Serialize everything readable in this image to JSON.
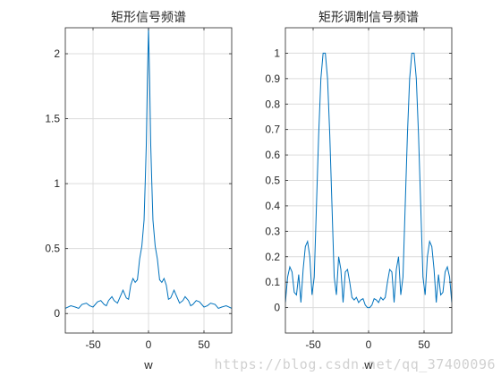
{
  "watermark": "https://blog.csdn.net/qq_37400096",
  "colors": {
    "line": "#0072bd",
    "grid": "#dcdcdc",
    "axis": "#262626",
    "background": "#ffffff"
  },
  "chart_data": [
    {
      "type": "line",
      "title": "矩形信号频谱",
      "xlabel": "w",
      "ylabel": "",
      "xlim": [
        -75,
        75
      ],
      "ylim": [
        -0.15,
        2.2
      ],
      "xticks": [
        -50,
        0,
        50
      ],
      "yticks": [
        0,
        0.5,
        1,
        1.5,
        2
      ],
      "ytick_labels": [
        "0",
        "0.5",
        "1",
        "1.5",
        "2"
      ],
      "grid": true,
      "series": [
        {
          "x": [
            -75,
            -70,
            -66,
            -63,
            -60,
            -56,
            -53,
            -50,
            -46,
            -43,
            -40,
            -38,
            -36,
            -33,
            -31,
            -28,
            -25,
            -23,
            -20,
            -18,
            -16,
            -14,
            -12,
            -10,
            -8,
            -6,
            -4,
            -3,
            -2,
            -1,
            0,
            1,
            2,
            3,
            4,
            6,
            8,
            10,
            12,
            14,
            16,
            18,
            20,
            23,
            25,
            28,
            31,
            33,
            36,
            38,
            40,
            43,
            46,
            50,
            53,
            56,
            60,
            63,
            66,
            70,
            75
          ],
          "y": [
            0.04,
            0.06,
            0.05,
            0.04,
            0.07,
            0.08,
            0.06,
            0.05,
            0.09,
            0.1,
            0.07,
            0.06,
            0.1,
            0.13,
            0.1,
            0.08,
            0.14,
            0.18,
            0.12,
            0.11,
            0.22,
            0.27,
            0.24,
            0.26,
            0.42,
            0.52,
            0.72,
            1.0,
            1.3,
            1.8,
            2.2,
            1.8,
            1.3,
            1.0,
            0.72,
            0.52,
            0.42,
            0.26,
            0.24,
            0.27,
            0.22,
            0.11,
            0.12,
            0.18,
            0.14,
            0.08,
            0.1,
            0.13,
            0.1,
            0.06,
            0.07,
            0.1,
            0.09,
            0.05,
            0.06,
            0.08,
            0.07,
            0.04,
            0.05,
            0.06,
            0.04
          ]
        }
      ]
    },
    {
      "type": "line",
      "title": "矩形调制信号频谱",
      "xlabel": "w",
      "ylabel": "",
      "xlim": [
        -75,
        75
      ],
      "ylim": [
        -0.1,
        1.1
      ],
      "xticks": [
        -50,
        0,
        50
      ],
      "yticks": [
        0,
        0.1,
        0.2,
        0.3,
        0.4,
        0.5,
        0.6,
        0.7,
        0.8,
        0.9,
        1
      ],
      "ytick_labels": [
        "0",
        "0.1",
        "0.2",
        "0.3",
        "0.4",
        "0.5",
        "0.6",
        "0.7",
        "0.8",
        "0.9",
        "1"
      ],
      "grid": true,
      "series": [
        {
          "x": [
            -75,
            -73,
            -71,
            -69,
            -67,
            -65,
            -63,
            -61,
            -59,
            -57,
            -55,
            -53,
            -51,
            -49,
            -47,
            -45,
            -43,
            -41,
            -39,
            -37,
            -35,
            -33,
            -31,
            -29,
            -27,
            -25,
            -23,
            -21,
            -19,
            -17,
            -15,
            -13,
            -11,
            -9,
            -7,
            -5,
            -3,
            -1,
            0,
            1,
            3,
            5,
            7,
            9,
            11,
            13,
            15,
            17,
            19,
            21,
            23,
            25,
            27,
            29,
            31,
            33,
            35,
            37,
            39,
            41,
            43,
            45,
            47,
            49,
            51,
            53,
            55,
            57,
            59,
            61,
            63,
            65,
            67,
            69,
            71,
            73,
            75
          ],
          "y": [
            0.02,
            0.12,
            0.16,
            0.14,
            0.06,
            0.05,
            0.13,
            0.02,
            0.15,
            0.24,
            0.26,
            0.2,
            0.05,
            0.12,
            0.4,
            0.68,
            0.9,
            1.0,
            1.0,
            0.9,
            0.68,
            0.4,
            0.12,
            0.05,
            0.2,
            0.15,
            0.02,
            0.14,
            0.15,
            0.1,
            0.04,
            0.03,
            0.04,
            0.02,
            0.03,
            0.035,
            0.01,
            0.0,
            0.0,
            0.0,
            0.01,
            0.035,
            0.03,
            0.02,
            0.04,
            0.03,
            0.04,
            0.1,
            0.15,
            0.14,
            0.02,
            0.15,
            0.2,
            0.05,
            0.12,
            0.4,
            0.68,
            0.9,
            1.0,
            1.0,
            0.9,
            0.68,
            0.4,
            0.12,
            0.05,
            0.2,
            0.26,
            0.24,
            0.15,
            0.02,
            0.13,
            0.05,
            0.06,
            0.14,
            0.16,
            0.12,
            0.02
          ]
        }
      ]
    }
  ]
}
